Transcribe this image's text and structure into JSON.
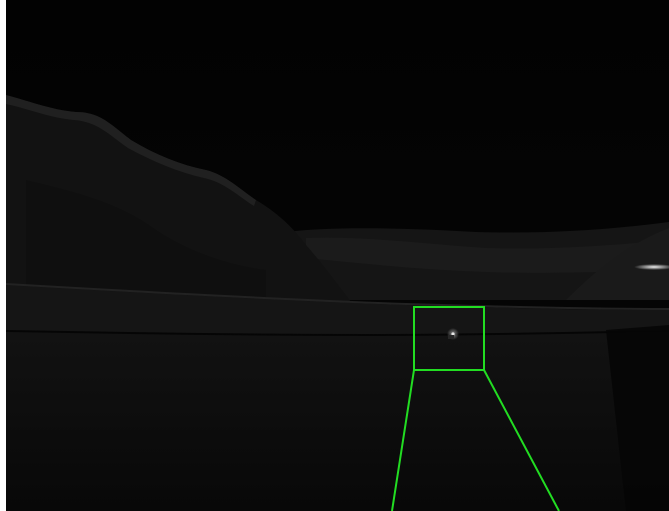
{
  "image": {
    "description_kind": "night-time infrared/thermal-style road scene",
    "has_visible_text": false
  },
  "colors": {
    "sky": "#030303",
    "hillside": "#141414",
    "hill_highlight": "#2a2a2a",
    "valley": "#1c1c1c",
    "road": "#0b0b0b",
    "horizon_band": "#151515",
    "annotation": "#22dd22",
    "target_spot": "#e8e8e8",
    "far_light": "#dcdcdc"
  },
  "annotation": {
    "shape": "zoom-callout",
    "label": ""
  }
}
